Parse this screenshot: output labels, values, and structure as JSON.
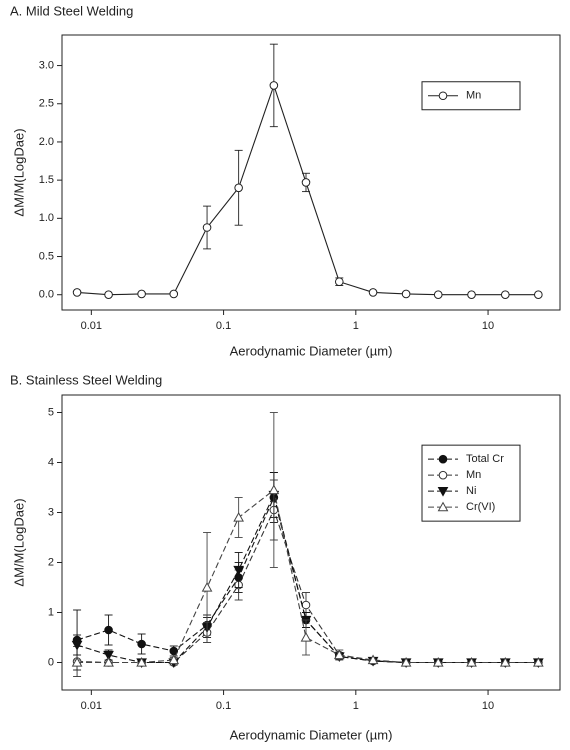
{
  "chart_data": [
    {
      "type": "line",
      "title": "A. Mild Steel Welding",
      "x_label": "Aerodynamic Diameter (µm)",
      "y_label": "ΔM/M(LogDae)",
      "log_x": true,
      "xlim": [
        0.006,
        35
      ],
      "xticks": [
        0.01,
        0.1,
        1,
        10
      ],
      "ylim": [
        -0.2,
        3.4
      ],
      "yticks": [
        {
          "value": 0,
          "label": "0.0"
        },
        {
          "value": 0.5,
          "label": "0.5"
        },
        {
          "value": 1,
          "label": "1.0"
        },
        {
          "value": 1.5,
          "label": "1.5"
        },
        {
          "value": 2,
          "label": "2.0"
        },
        {
          "value": 2.5,
          "label": "2.5"
        },
        {
          "value": 3,
          "label": "3.0"
        }
      ],
      "legend": "upper right",
      "x": [
        0.0078,
        0.0135,
        0.024,
        0.042,
        0.075,
        0.13,
        0.24,
        0.42,
        0.75,
        1.35,
        2.4,
        4.2,
        7.5,
        13.5,
        24
      ],
      "series": [
        {
          "name": "Mn",
          "color": "#222222",
          "marker": "circle-open",
          "line_style": "solid",
          "values": [
            0.03,
            0.0,
            0.01,
            0.01,
            0.88,
            1.4,
            2.74,
            1.47,
            0.17,
            0.03,
            0.01,
            0.0,
            0.0,
            0.0,
            0.0
          ],
          "errors": [
            0.01,
            0,
            0,
            0,
            0.28,
            0.49,
            0.54,
            0.12,
            0.05,
            0,
            0,
            0,
            0,
            0,
            0
          ]
        }
      ]
    },
    {
      "type": "line",
      "title": "B. Stainless Steel Welding",
      "x_label": "Aerodynamic Diameter (µm)",
      "y_label": "ΔM/M(LogDae)",
      "log_x": true,
      "xlim": [
        0.006,
        35
      ],
      "xticks": [
        0.01,
        0.1,
        1,
        10
      ],
      "ylim": [
        -0.55,
        5.35
      ],
      "yticks": [
        0,
        1,
        2,
        3,
        4,
        5
      ],
      "legend": "upper right",
      "x": [
        0.0078,
        0.0135,
        0.024,
        0.042,
        0.075,
        0.13,
        0.24,
        0.42,
        0.75,
        1.35,
        2.4,
        4.2,
        7.5,
        13.5,
        24
      ],
      "series": [
        {
          "name": "Total Cr",
          "color": "#111111",
          "marker": "circle-filled",
          "line_style": "dashed",
          "values": [
            0.45,
            0.65,
            0.37,
            0.23,
            0.75,
            1.7,
            3.3,
            0.85,
            0.12,
            0.03,
            0.0,
            0.0,
            0.0,
            0.0,
            0.0
          ],
          "errors": [
            0.6,
            0.3,
            0.2,
            0.1,
            0.2,
            0.3,
            0.5,
            0.15,
            0.05,
            0,
            0,
            0,
            0,
            0,
            0
          ]
        },
        {
          "name": "Mn",
          "color": "#333333",
          "marker": "circle-open",
          "line_style": "dashed",
          "values": [
            0.02,
            0.0,
            0.0,
            0.0,
            0.6,
            1.55,
            3.05,
            1.15,
            0.15,
            0.03,
            0.0,
            0.0,
            0.0,
            0.0,
            0.0
          ],
          "errors": [
            0.3,
            0,
            0,
            0.05,
            0.2,
            0.3,
            0.6,
            0.25,
            0.05,
            0,
            0,
            0,
            0,
            0,
            0
          ]
        },
        {
          "name": "Ni",
          "color": "#111111",
          "marker": "triangle-down-filled",
          "line_style": "dashed",
          "values": [
            0.35,
            0.15,
            0.0,
            0.0,
            0.7,
            1.85,
            3.35,
            0.85,
            0.12,
            0.03,
            0.0,
            0.0,
            0.0,
            0.0,
            0.0
          ],
          "errors": [
            0.2,
            0.1,
            0,
            0,
            0.2,
            0.35,
            0.45,
            0.15,
            0.05,
            0,
            0,
            0,
            0,
            0,
            0
          ]
        },
        {
          "name": "Cr(VI)",
          "color": "#444444",
          "marker": "triangle-up-open",
          "line_style": "dashed",
          "values": [
            0.0,
            0.0,
            0.0,
            0.05,
            1.5,
            2.9,
            3.45,
            0.5,
            0.15,
            0.05,
            0.0,
            0.0,
            0.0,
            0.0,
            0.0
          ],
          "errors": [
            0.05,
            0,
            0,
            0.05,
            1.1,
            0.4,
            1.55,
            0.35,
            0.1,
            0,
            0,
            0,
            0,
            0,
            0
          ]
        }
      ]
    }
  ]
}
